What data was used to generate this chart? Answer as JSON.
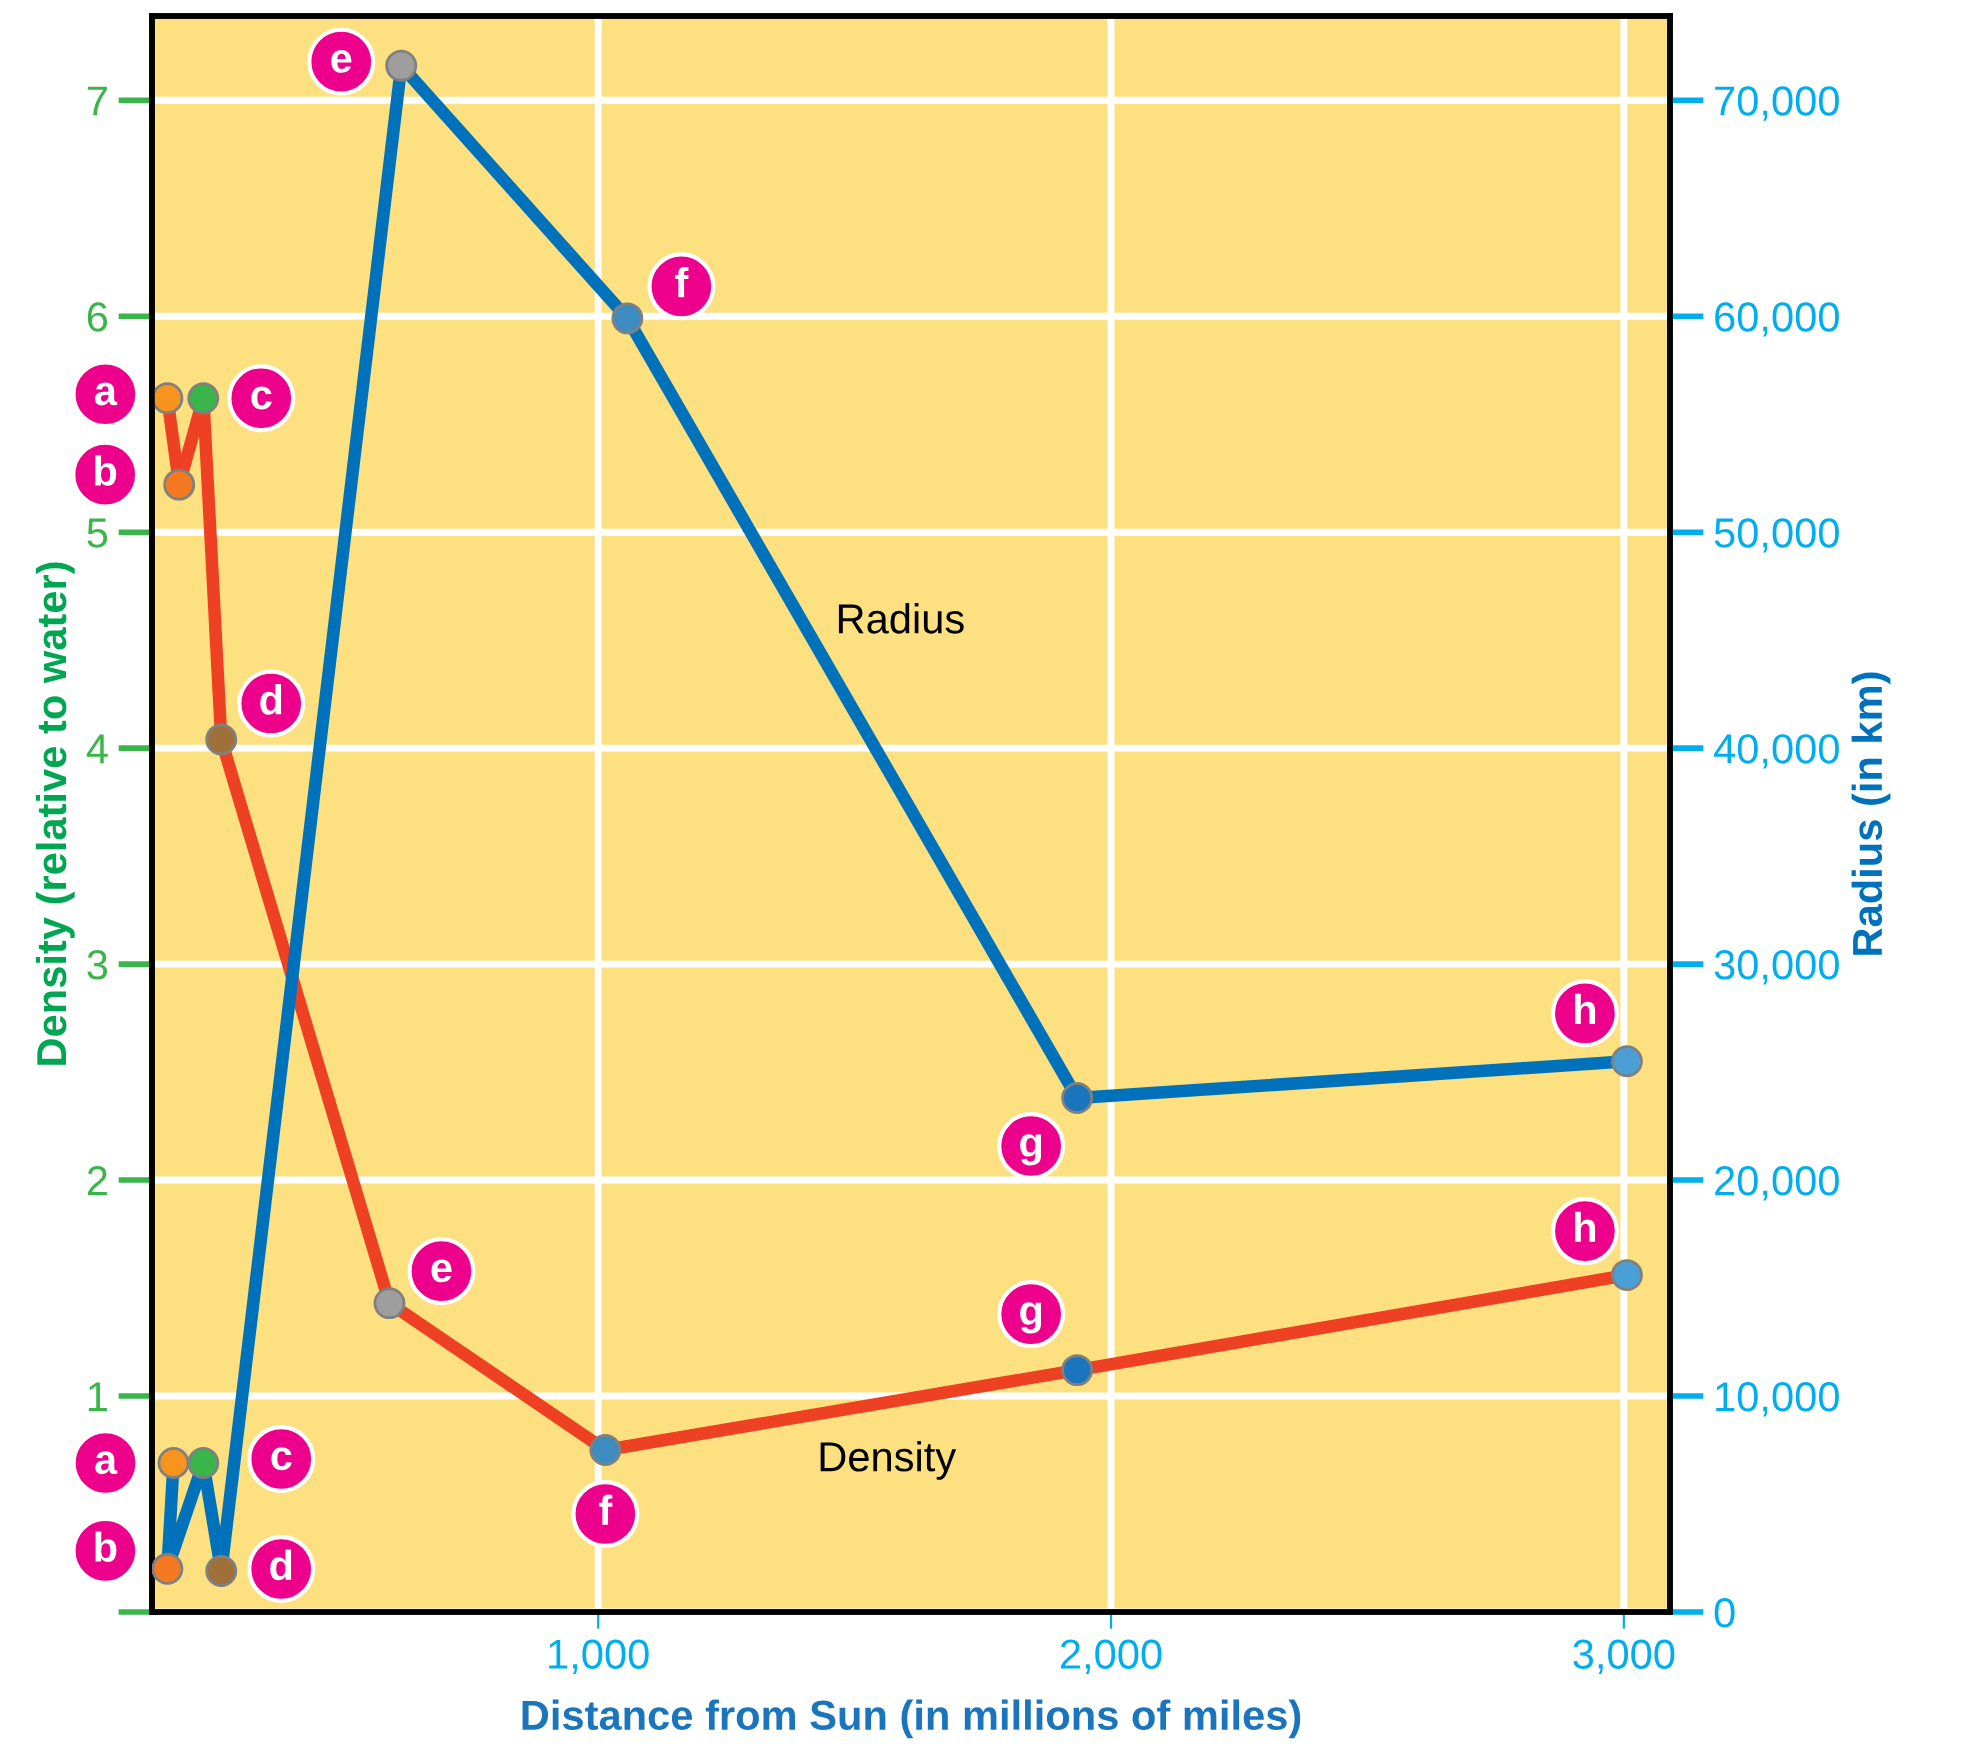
{
  "chart_data": {
    "type": "line",
    "xlabel": "Distance from Sun (in millions of miles)",
    "ylabel": "Density (relative to water)",
    "y2label": "Radius (in km)",
    "xlim": [
      130,
      3090
    ],
    "xticks": [
      {
        "value": 1000,
        "label": "1,000"
      },
      {
        "value": 2000,
        "label": "2,000"
      },
      {
        "value": 3000,
        "label": "3,000"
      }
    ],
    "ylim": [
      0,
      7.39
    ],
    "yticks": [
      {
        "value": 0,
        "label": null
      },
      1,
      2,
      3,
      4,
      5,
      6,
      7
    ],
    "y2lim": [
      0,
      73900
    ],
    "y2ticks": [
      0,
      {
        "value": 10000,
        "label": "10,000"
      },
      {
        "value": 20000,
        "label": "20,000"
      },
      {
        "value": 30000,
        "label": "30,000"
      },
      {
        "value": 40000,
        "label": "40,000"
      },
      {
        "value": 50000,
        "label": "50,000"
      },
      {
        "value": 60000,
        "label": "60,000"
      },
      {
        "value": 70000,
        "label": "70,000"
      }
    ],
    "grid": true,
    "marker": "circle",
    "line_style": "solid",
    "legend": false,
    "series": [
      {
        "name": "Density",
        "color": "#ee4023",
        "x": [
          160,
          183,
          230,
          265,
          593,
          1014,
          1934,
          3006
        ],
        "values": [
          5.62,
          5.22,
          5.62,
          4.04,
          1.43,
          0.75,
          1.12,
          1.56
        ],
        "colors": [
          "#f7941d",
          "#f47920",
          "#39b54a",
          "#a0703a",
          "#9e9e9e",
          "#3d8cc0",
          "#1b75bc",
          "#4a9fd5"
        ],
        "value_labels": [
          "a",
          "b",
          "c",
          "d",
          "e",
          "f",
          "g",
          "h"
        ]
      },
      {
        "name": "Radius",
        "color": "#0072bc",
        "axis": "y2",
        "x": [
          172,
          160,
          230,
          265,
          616,
          1057,
          1934,
          3006
        ],
        "values": [
          6900,
          2000,
          6900,
          1900,
          71600,
          59900,
          23800,
          25500
        ],
        "colors": [
          "#f7941d",
          "#f47920",
          "#39b54a",
          "#a0703a",
          "#9e9e9e",
          "#3d8cc0",
          "#1b75bc",
          "#4a9fd5"
        ],
        "value_labels": [
          "a",
          "b",
          "c",
          "d",
          "e",
          "f",
          "g",
          "h"
        ]
      }
    ]
  }
}
